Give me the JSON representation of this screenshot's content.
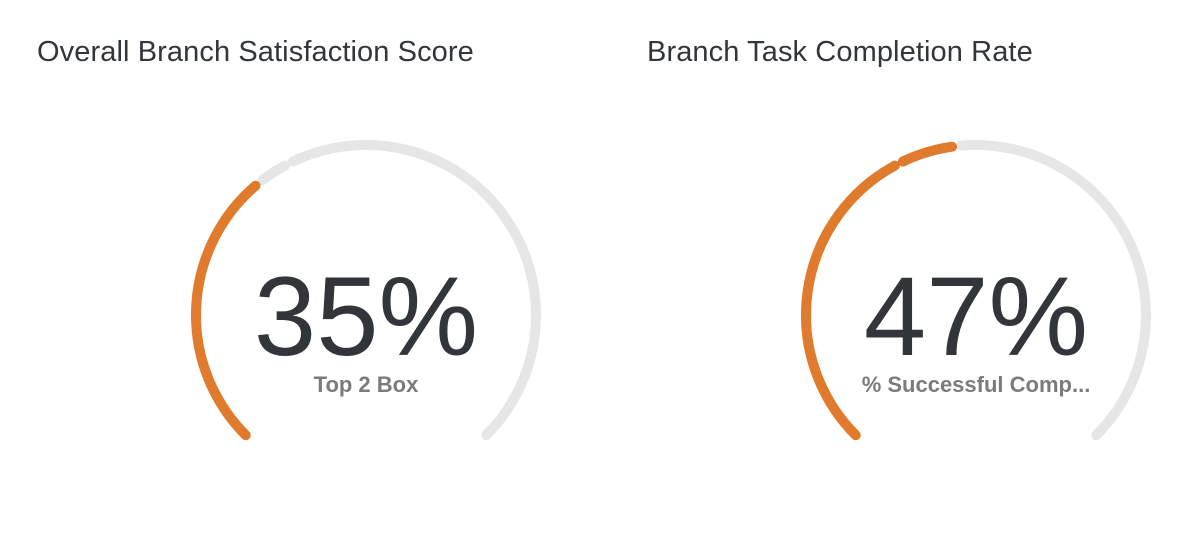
{
  "colors": {
    "accent": "#e07b2e",
    "track": "#e6e6e6",
    "value_text": "#32363a",
    "label_text": "#7b7b7b",
    "title_text": "#32363a"
  },
  "widgets": [
    {
      "title": "Overall Branch Satisfaction Score",
      "value_text": "35%",
      "metric_label": "Top 2 Box"
    },
    {
      "title": "Branch Task Completion Rate",
      "value_text": "47%",
      "metric_label": "% Successful Comp..."
    }
  ],
  "chart_data": [
    {
      "type": "gauge",
      "title": "Overall Branch Satisfaction Score",
      "value": 35,
      "unit": "%",
      "range": [
        0,
        100
      ],
      "label": "Top 2 Box",
      "target_marker": 40
    },
    {
      "type": "gauge",
      "title": "Branch Task Completion Rate",
      "value": 47,
      "unit": "%",
      "range": [
        0,
        100
      ],
      "label": "% Successful Comp...",
      "target_marker": 40
    }
  ]
}
